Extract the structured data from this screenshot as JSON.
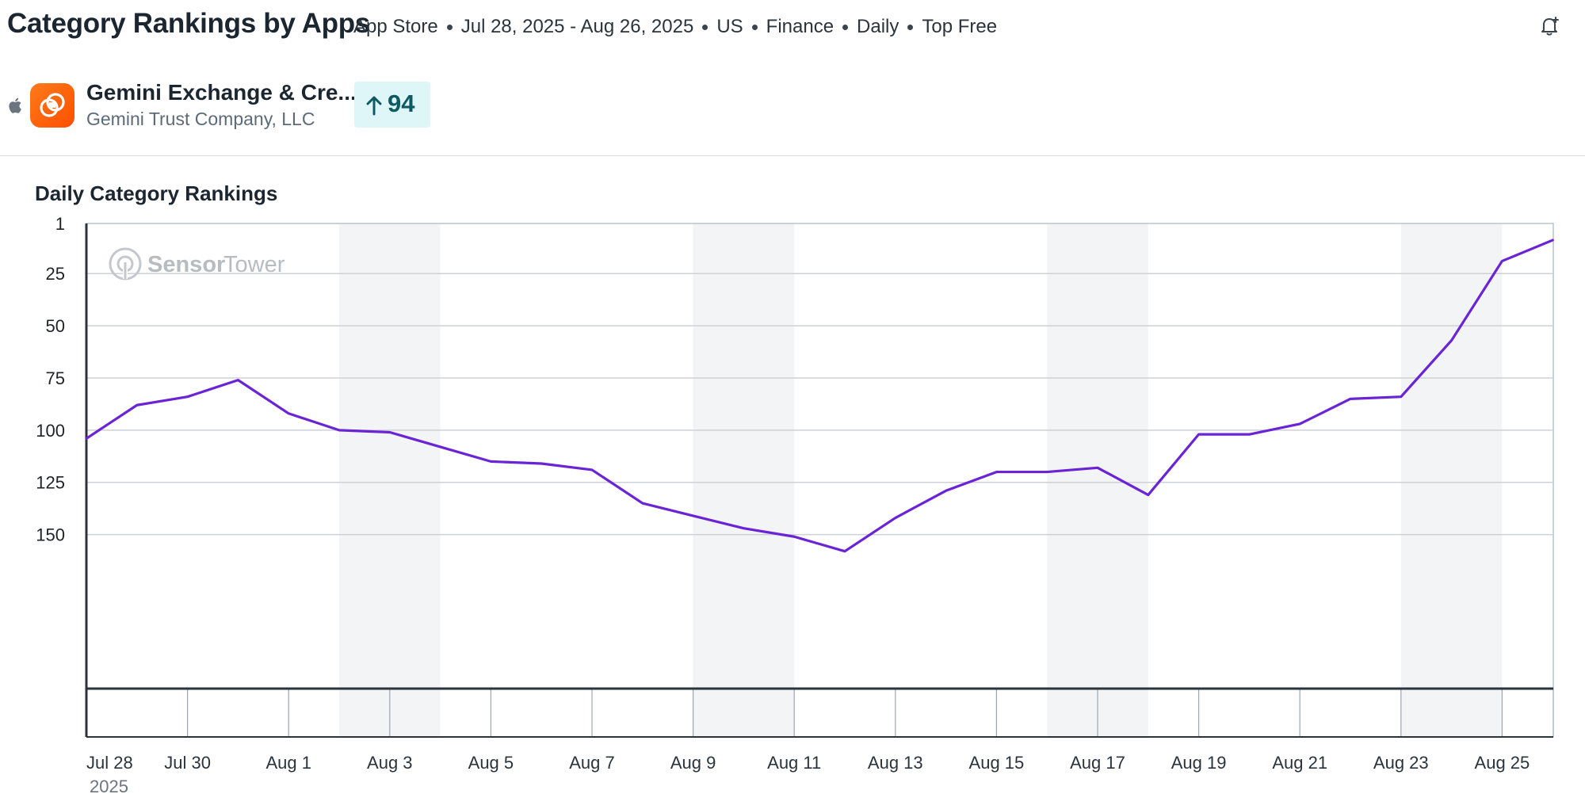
{
  "header": {
    "title": "Category Rankings by Apps",
    "crumbs": [
      "App Store",
      "Jul 28, 2025 - Aug 26, 2025",
      "US",
      "Finance",
      "Daily",
      "Top Free"
    ]
  },
  "app": {
    "name": "Gemini Exchange & Cre...",
    "developer": "Gemini Trust Company, LLC",
    "rank_change": "94",
    "icon": "gemini-logo-icon",
    "platform_icon": "apple-icon"
  },
  "colors": {
    "line": "#6a24d6",
    "weekend_band": "#f3f4f6",
    "badge_bg": "#dff6f9",
    "badge_text": "#0d5a63",
    "app_icon": "#ff5a0a"
  },
  "watermark": {
    "text_a": "Sensor",
    "text_b": "Tower"
  },
  "chart_data": {
    "type": "line",
    "title": "Daily Category Rankings",
    "y_ticks": [
      1,
      25,
      50,
      75,
      100,
      125,
      150
    ],
    "y_reversed": true,
    "ylim": [
      1,
      175
    ],
    "x_tick_labels": [
      "Jul 28",
      "Jul 30",
      "Aug 1",
      "Aug 3",
      "Aug 5",
      "Aug 7",
      "Aug 9",
      "Aug 11",
      "Aug 13",
      "Aug 15",
      "Aug 17",
      "Aug 19",
      "Aug 21",
      "Aug 23",
      "Aug 25"
    ],
    "x_year_label": "2025",
    "weekend_bands": [
      [
        "Aug 2",
        "Aug 3"
      ],
      [
        "Aug 9",
        "Aug 10"
      ],
      [
        "Aug 16",
        "Aug 17"
      ],
      [
        "Aug 23",
        "Aug 24"
      ]
    ],
    "grid": "horizontal",
    "series": [
      {
        "x": [
          "Jul 28",
          "Jul 29",
          "Jul 30",
          "Jul 31",
          "Aug 1",
          "Aug 2",
          "Aug 3",
          "Aug 4",
          "Aug 5",
          "Aug 6",
          "Aug 7",
          "Aug 8",
          "Aug 9",
          "Aug 10",
          "Aug 11",
          "Aug 12",
          "Aug 13",
          "Aug 14",
          "Aug 15",
          "Aug 16",
          "Aug 17",
          "Aug 18",
          "Aug 19",
          "Aug 20",
          "Aug 21",
          "Aug 22",
          "Aug 23",
          "Aug 24",
          "Aug 25",
          "Aug 26"
        ],
        "values": [
          104,
          88,
          84,
          76,
          92,
          100,
          101,
          108,
          115,
          116,
          119,
          135,
          141,
          147,
          151,
          158,
          142,
          129,
          120,
          120,
          118,
          131,
          102,
          102,
          97,
          85,
          84,
          57,
          19,
          9
        ]
      }
    ]
  }
}
